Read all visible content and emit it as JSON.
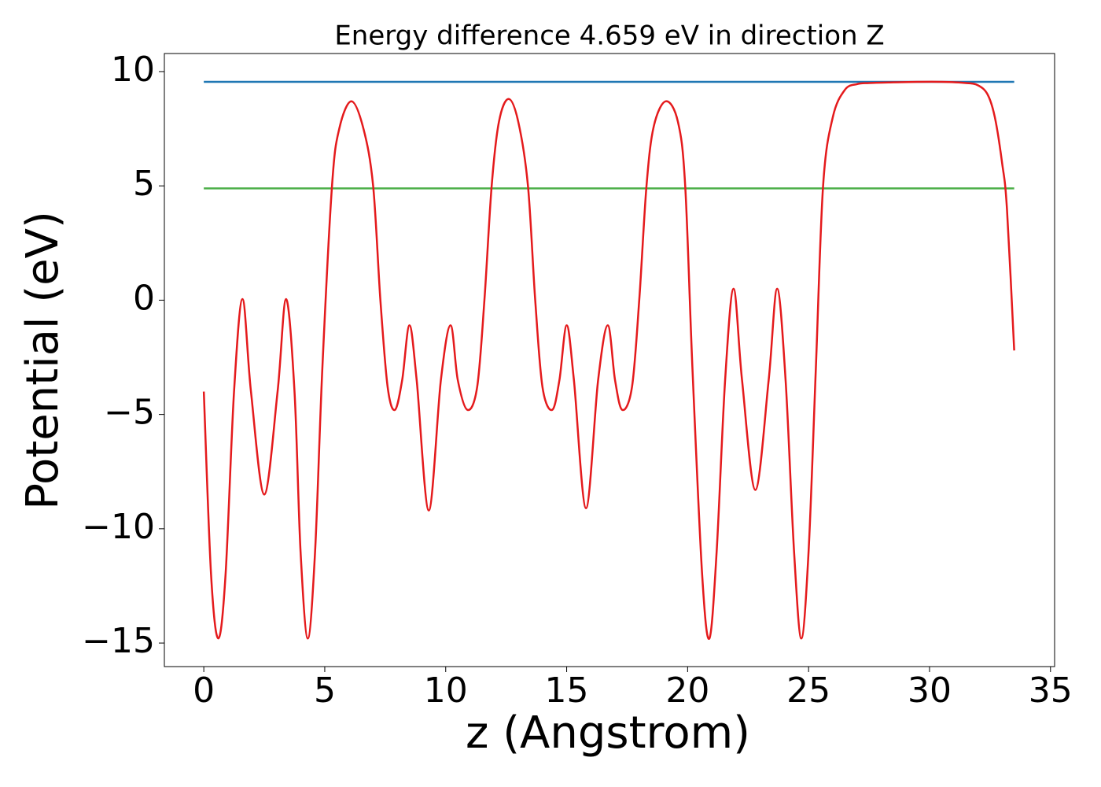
{
  "chart_data": {
    "type": "line",
    "title": "Energy difference 4.659 eV in direction Z",
    "xlabel": "z (Angstrom)",
    "ylabel": "Potential (eV)",
    "xlim": [
      -1.63,
      35.17
    ],
    "ylim": [
      -16.03,
      10.79
    ],
    "xticks": [
      0,
      5,
      10,
      15,
      20,
      25,
      30,
      35
    ],
    "yticks": [
      {
        "value": -15,
        "label": "−15"
      },
      {
        "value": -10,
        "label": "−10"
      },
      {
        "value": -5,
        "label": "−5"
      },
      0,
      5,
      10
    ],
    "series": [
      {
        "color": "#1f77b4",
        "x": [
          0,
          33.5
        ],
        "values": [
          9.55,
          9.55
        ]
      },
      {
        "color": "#4daf4a",
        "x": [
          0,
          33.5
        ],
        "values": [
          4.89,
          4.89
        ]
      },
      {
        "color": "#e41a1c",
        "x": [
          0,
          0.3,
          0.6,
          0.9,
          1.25,
          1.6,
          1.95,
          2.5,
          3.05,
          3.4,
          3.75,
          4.0,
          4.3,
          4.6,
          4.9,
          5.3,
          5.6,
          6.1,
          6.6,
          7.0,
          7.3,
          7.6,
          7.9,
          8.2,
          8.5,
          8.8,
          9.3,
          9.8,
          10.2,
          10.5,
          10.9,
          11.3,
          11.6,
          11.9,
          12.2,
          12.6,
          13.0,
          13.4,
          13.7,
          14.0,
          14.4,
          14.7,
          15.0,
          15.3,
          15.8,
          16.3,
          16.7,
          17.0,
          17.3,
          17.7,
          18.0,
          18.3,
          18.6,
          19.1,
          19.6,
          19.9,
          20.2,
          20.6,
          20.9,
          21.2,
          21.55,
          21.9,
          22.25,
          22.8,
          23.35,
          23.7,
          24.05,
          24.4,
          24.7,
          25.0,
          25.3,
          25.6,
          26.0,
          26.5,
          27.0,
          27.5,
          28.5,
          29.5,
          30.5,
          31.5,
          32.0,
          32.4,
          32.7,
          33.0,
          33.2,
          33.5
        ],
        "values": [
          -4,
          -12,
          -14.8,
          -12,
          -4,
          0.05,
          -4,
          -8.5,
          -4,
          0.05,
          -4,
          -11,
          -14.8,
          -11,
          -3,
          5,
          7.5,
          8.7,
          7.5,
          5,
          0,
          -3.8,
          -4.8,
          -3.5,
          -1.1,
          -3.5,
          -9.2,
          -3.5,
          -1.1,
          -3.5,
          -4.8,
          -3.8,
          0,
          5,
          7.8,
          8.8,
          7.8,
          5,
          0,
          -3.8,
          -4.8,
          -3.5,
          -1.1,
          -3.5,
          -9.1,
          -3.5,
          -1.1,
          -3.5,
          -4.8,
          -3.8,
          0,
          5,
          7.6,
          8.7,
          7.8,
          5,
          -3,
          -12,
          -14.8,
          -11,
          -3.5,
          0.5,
          -3.5,
          -8.3,
          -3.5,
          0.5,
          -3.5,
          -11,
          -14.8,
          -11,
          -3,
          5,
          8,
          9.2,
          9.45,
          9.5,
          9.53,
          9.55,
          9.55,
          9.5,
          9.4,
          9.0,
          8.0,
          6.0,
          4.0,
          -2.2
        ]
      }
    ]
  }
}
